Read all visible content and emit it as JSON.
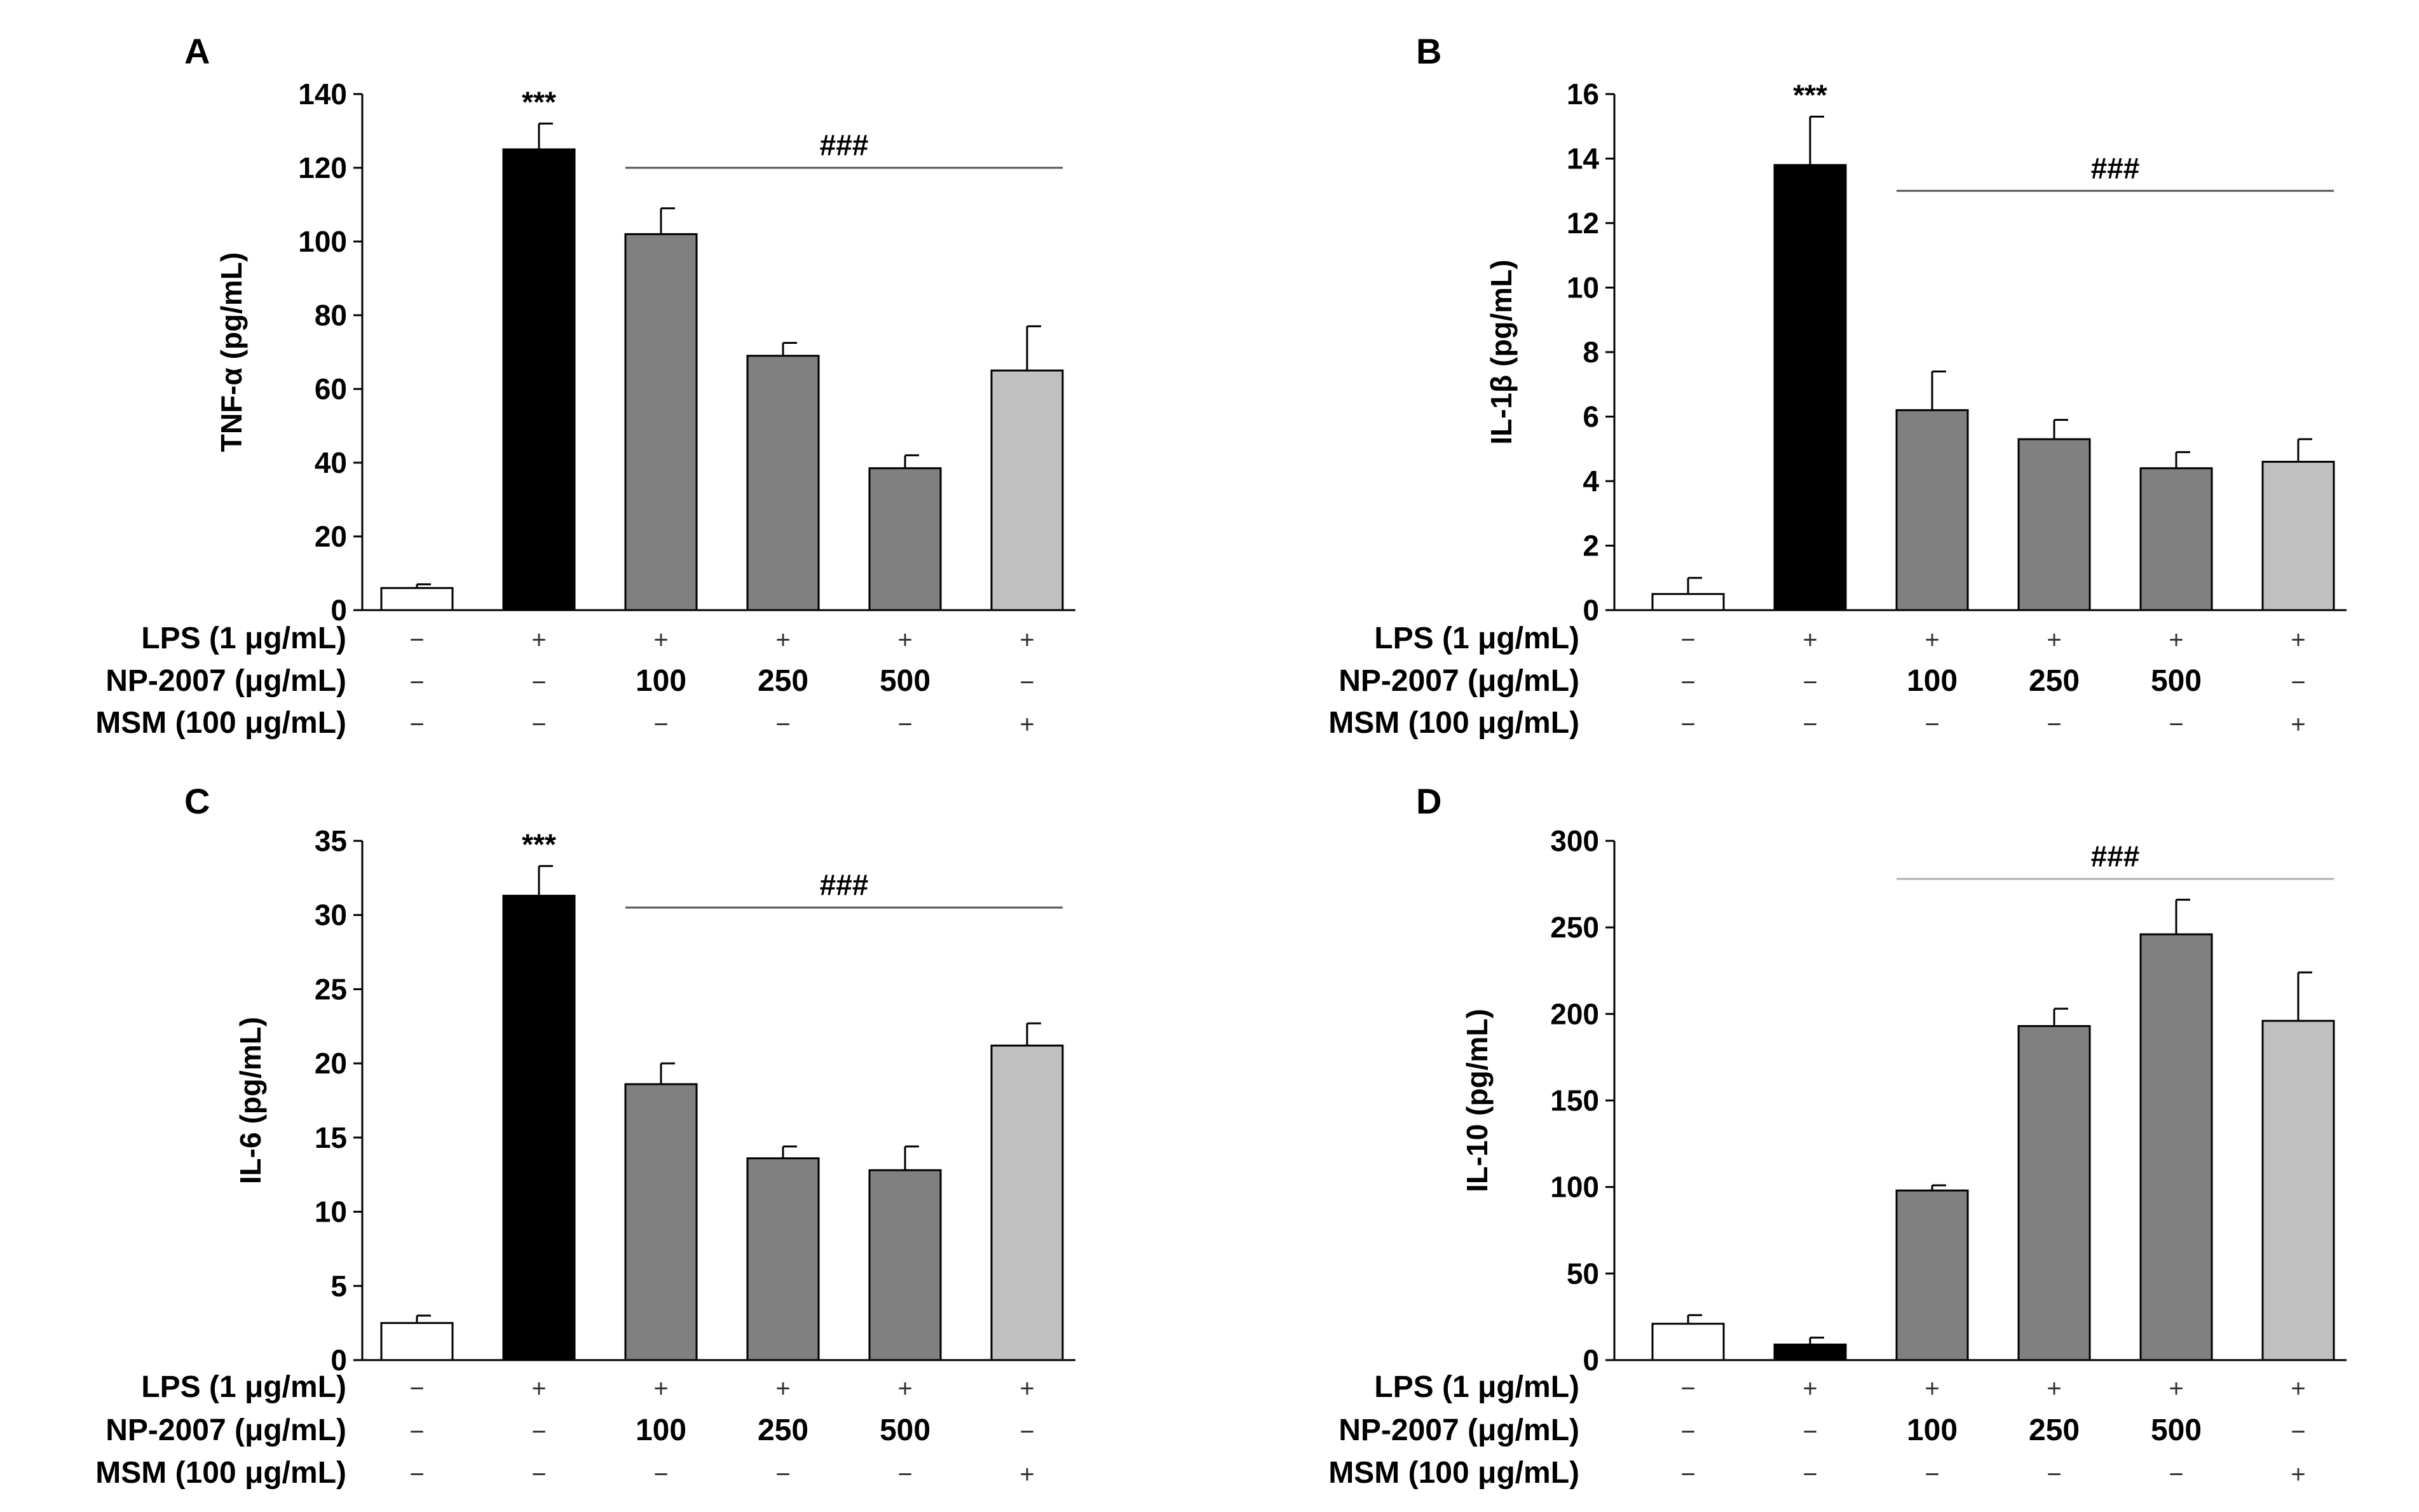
{
  "chart_data": [
    {
      "type": "bar",
      "panel": "A",
      "ylabel": "TNF-α (pg/mL)",
      "ylim": [
        0,
        140
      ],
      "yticks": [
        0,
        20,
        40,
        60,
        80,
        100,
        120,
        140
      ],
      "values": [
        6,
        125,
        102,
        69,
        38.5,
        65
      ],
      "errors": [
        1,
        7,
        7,
        3.5,
        3.5,
        12
      ],
      "colors": [
        "#ffffff",
        "#000000",
        "#808080",
        "#808080",
        "#808080",
        "#c0c0c0"
      ],
      "sig_marks": [
        {
          "bar": 1,
          "text": "***"
        }
      ],
      "bracket": {
        "from": 2,
        "to": 5,
        "text": "###",
        "y": 120,
        "color": "#555555"
      }
    },
    {
      "type": "bar",
      "panel": "B",
      "ylabel": "IL-1β (pg/mL)",
      "ylim": [
        0,
        16
      ],
      "yticks": [
        0,
        2,
        4,
        6,
        8,
        10,
        12,
        14,
        16
      ],
      "values": [
        0.5,
        13.8,
        6.2,
        5.3,
        4.4,
        4.6
      ],
      "errors": [
        0.5,
        1.5,
        1.2,
        0.6,
        0.5,
        0.7
      ],
      "colors": [
        "#ffffff",
        "#000000",
        "#808080",
        "#808080",
        "#808080",
        "#c0c0c0"
      ],
      "sig_marks": [
        {
          "bar": 1,
          "text": "***"
        }
      ],
      "bracket": {
        "from": 2,
        "to": 5,
        "text": "###",
        "y": 13,
        "color": "#555555"
      }
    },
    {
      "type": "bar",
      "panel": "C",
      "ylabel": "IL-6 (pg/mL)",
      "ylim": [
        0,
        35
      ],
      "yticks": [
        0,
        5,
        10,
        15,
        20,
        25,
        30,
        35
      ],
      "values": [
        2.5,
        31.3,
        18.6,
        13.6,
        12.8,
        21.2
      ],
      "errors": [
        0.5,
        2.0,
        1.4,
        0.8,
        1.6,
        1.5
      ],
      "colors": [
        "#ffffff",
        "#000000",
        "#808080",
        "#808080",
        "#808080",
        "#c0c0c0"
      ],
      "sig_marks": [
        {
          "bar": 1,
          "text": "***"
        }
      ],
      "bracket": {
        "from": 2,
        "to": 5,
        "text": "###",
        "y": 30.5,
        "color": "#555555"
      }
    },
    {
      "type": "bar",
      "panel": "D",
      "ylabel": "IL-10 (pg/mL)",
      "ylim": [
        0,
        300
      ],
      "yticks": [
        0,
        50,
        100,
        150,
        200,
        250,
        300
      ],
      "values": [
        21,
        9,
        98,
        193,
        246,
        196
      ],
      "errors": [
        5,
        4,
        3,
        10,
        20,
        28
      ],
      "colors": [
        "#ffffff",
        "#000000",
        "#808080",
        "#808080",
        "#808080",
        "#c0c0c0"
      ],
      "sig_marks": [],
      "bracket": {
        "from": 2,
        "to": 5,
        "text": "###",
        "y": 278,
        "color": "#b0b0b0"
      }
    }
  ],
  "conditions": {
    "rows": [
      {
        "label": "LPS (1 μg/mL)",
        "values": [
          "−",
          "+",
          "+",
          "+",
          "+",
          "+"
        ]
      },
      {
        "label": "NP-2007 (μg/mL)",
        "values": [
          "−",
          "−",
          "100",
          "250",
          "500",
          "−"
        ]
      },
      {
        "label": "MSM (100 μg/mL)",
        "values": [
          "−",
          "−",
          "−",
          "−",
          "−",
          "+"
        ]
      }
    ]
  }
}
